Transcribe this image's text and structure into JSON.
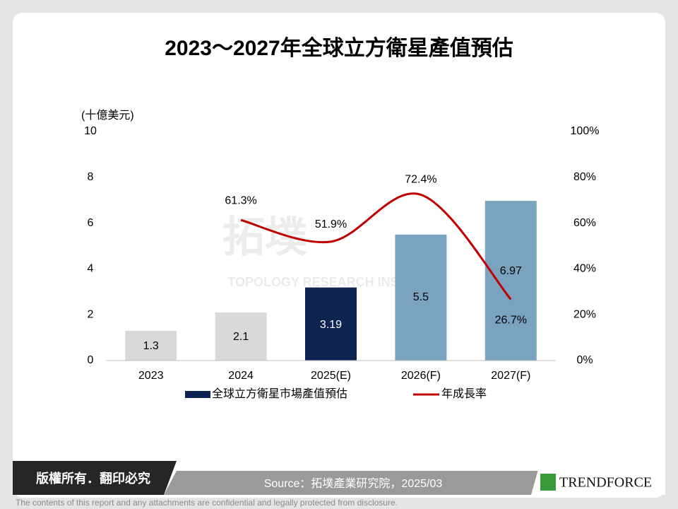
{
  "chart_data": {
    "type": "bar-line",
    "title": "2023～2027年全球立方衛星產值預估",
    "y_label": "(十億美元)",
    "categories": [
      "2023",
      "2024",
      "2025(E)",
      "2026(F)",
      "2027(F)"
    ],
    "series": [
      {
        "name": "全球立方衛星市場產值預估",
        "color": "#0d2451",
        "type": "bar",
        "colors": [
          "#d9d9d9",
          "#d9d9d9",
          "#0d2451",
          "#7aa3bf",
          "#7aa3bf"
        ],
        "values": [
          1.3,
          2.1,
          3.19,
          5.5,
          6.97
        ]
      },
      {
        "name": "年成長率",
        "color": "#c00000",
        "type": "line",
        "axis": "y2",
        "values": [
          null,
          61.3,
          51.9,
          72.4,
          26.7
        ],
        "value_labels": [
          null,
          "61.3%",
          "51.9%",
          "72.4%",
          "26.7%"
        ]
      }
    ],
    "ylim": [
      0,
      10
    ],
    "yticks": [
      0,
      2,
      4,
      6,
      8,
      10
    ],
    "y2lim": [
      0,
      100
    ],
    "y2ticks": [
      {
        "value": 0,
        "label": "0%"
      },
      {
        "value": 20,
        "label": "20%"
      },
      {
        "value": 40,
        "label": "40%"
      },
      {
        "value": 60,
        "label": "60%"
      },
      {
        "value": 80,
        "label": "80%"
      },
      {
        "value": 100,
        "label": "100%"
      }
    ],
    "legend": "bottom"
  },
  "slide": {
    "watermark": "拓墣",
    "watermark_sub": "TOPOLOGY RESEARCH INSTITUTE",
    "copyright": "版權所有．翻印必究",
    "source": "Source：拓墣產業研究院，2025/03",
    "logo": "TRENDFORCE",
    "disclaimer": "The contents of this report and any attachments are confidential and legally protected from disclosure."
  }
}
